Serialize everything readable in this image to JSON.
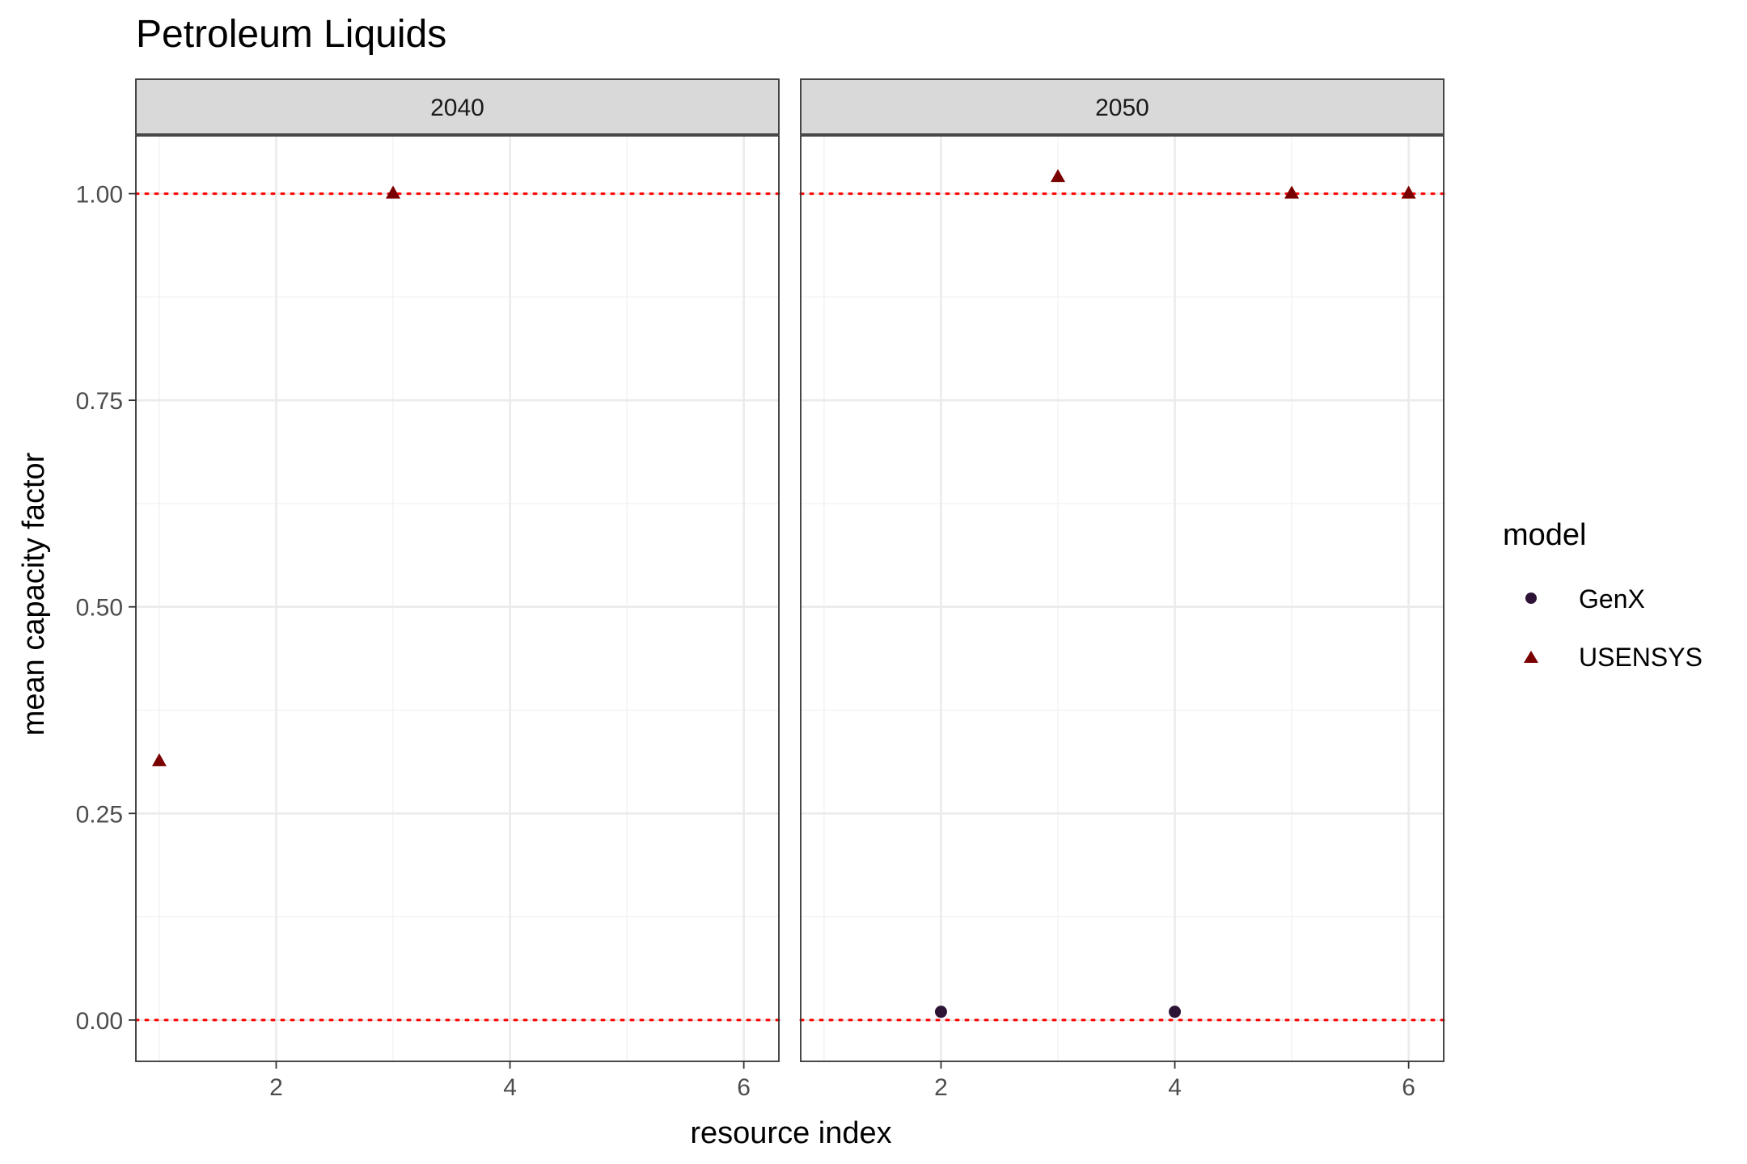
{
  "chart_data": {
    "type": "scatter",
    "title": "Petroleum Liquids",
    "xlabel": "resource index",
    "ylabel": "mean capacity factor",
    "xlim": [
      0.8,
      6.3
    ],
    "ylim": [
      -0.05,
      1.07
    ],
    "x_ticks": [
      2,
      4,
      6
    ],
    "y_ticks": [
      0.0,
      0.25,
      0.5,
      0.75,
      1.0
    ],
    "y_tick_labels": [
      "0.00",
      "0.25",
      "0.50",
      "0.75",
      "1.00"
    ],
    "reference_lines": [
      0,
      1
    ],
    "reference_line_color": "#ff0000",
    "grid": true,
    "legend": {
      "title": "model",
      "position": "right",
      "entries": [
        {
          "name": "GenX",
          "shape": "circle",
          "color": "#2d1436"
        },
        {
          "name": "USENSYS",
          "shape": "triangle",
          "color": "#7a0000"
        }
      ]
    },
    "facets": [
      {
        "label": "2040",
        "series": [
          {
            "name": "GenX",
            "points": []
          },
          {
            "name": "USENSYS",
            "points": [
              {
                "x": 1,
                "y": 0.313
              },
              {
                "x": 3,
                "y": 1.0
              }
            ]
          }
        ]
      },
      {
        "label": "2050",
        "series": [
          {
            "name": "GenX",
            "points": [
              {
                "x": 2,
                "y": 0.01
              },
              {
                "x": 4,
                "y": 0.01
              }
            ]
          },
          {
            "name": "USENSYS",
            "points": [
              {
                "x": 3,
                "y": 1.02
              },
              {
                "x": 5,
                "y": 1.0
              },
              {
                "x": 6,
                "y": 1.0
              }
            ]
          }
        ]
      }
    ]
  }
}
